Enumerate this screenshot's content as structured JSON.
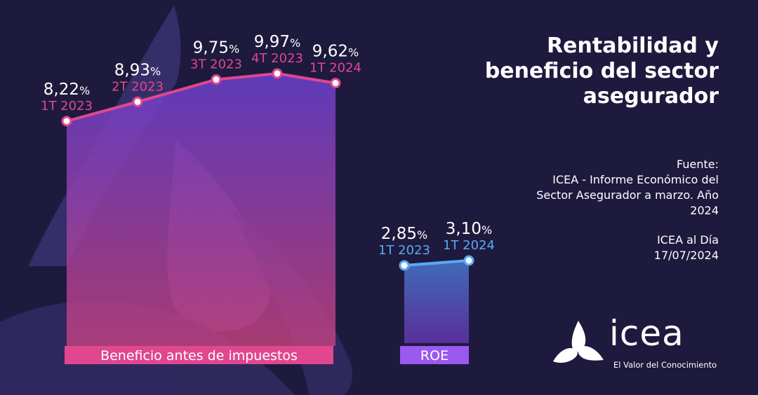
{
  "title_lines": [
    "Rentabilidad y",
    "beneficio del sector",
    "asegurador"
  ],
  "source": {
    "label": "Fuente:",
    "lines": [
      "ICEA - Informe Económico del",
      "Sector Asegurador a marzo. Año",
      "2024"
    ],
    "extra": [
      "ICEA al Día",
      "17/07/2024"
    ]
  },
  "logo": {
    "word": "icea",
    "tagline": "El Valor del Conocimiento"
  },
  "colors": {
    "background": "#1e1a3e",
    "beneficio_line": "#e0478f",
    "beneficio_label_bg": "#e0478f",
    "roe_line": "#5aa9f2",
    "roe_label_bg": "#9b59f0",
    "text": "#ffffff"
  },
  "chart_data": [
    {
      "type": "area",
      "label": "Beneficio antes de impuestos",
      "categories": [
        "1T 2023",
        "2T 2023",
        "3T 2023",
        "4T 2023",
        "1T 2024"
      ],
      "values": [
        8.22,
        8.93,
        9.75,
        9.97,
        9.62
      ],
      "value_labels": [
        "8,22",
        "8,93",
        "9,75",
        "9,97",
        "9,62"
      ],
      "unit": "%"
    },
    {
      "type": "area",
      "label": "ROE",
      "categories": [
        "1T 2023",
        "1T 2024"
      ],
      "values": [
        2.85,
        3.1
      ],
      "value_labels": [
        "2,85",
        "3,10"
      ],
      "unit": "%"
    }
  ]
}
